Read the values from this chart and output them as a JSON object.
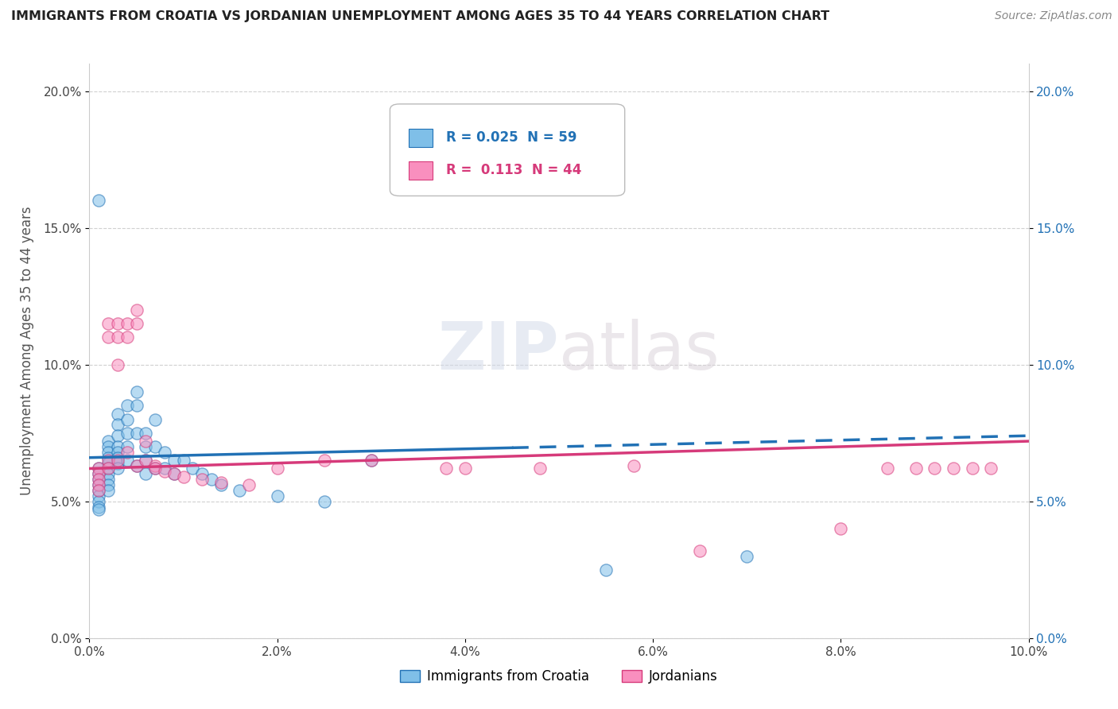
{
  "title": "IMMIGRANTS FROM CROATIA VS JORDANIAN UNEMPLOYMENT AMONG AGES 35 TO 44 YEARS CORRELATION CHART",
  "source": "Source: ZipAtlas.com",
  "ylabel": "Unemployment Among Ages 35 to 44 years",
  "xlim": [
    0.0,
    0.1
  ],
  "ylim": [
    0.0,
    0.21
  ],
  "legend_label1": "Immigrants from Croatia",
  "legend_label2": "Jordanians",
  "r1": 0.025,
  "n1": 59,
  "r2": 0.113,
  "n2": 44,
  "color1": "#7fbfe8",
  "color2": "#f98fbe",
  "color1_dark": "#2171b5",
  "color2_dark": "#d63a7a",
  "watermark_zip": "ZIP",
  "watermark_atlas": "atlas",
  "croatia_x": [
    0.001,
    0.001,
    0.001,
    0.001,
    0.001,
    0.001,
    0.001,
    0.001,
    0.001,
    0.001,
    0.002,
    0.002,
    0.002,
    0.002,
    0.002,
    0.002,
    0.002,
    0.002,
    0.002,
    0.002,
    0.003,
    0.003,
    0.003,
    0.003,
    0.003,
    0.003,
    0.003,
    0.003,
    0.004,
    0.004,
    0.004,
    0.004,
    0.004,
    0.005,
    0.005,
    0.005,
    0.005,
    0.006,
    0.006,
    0.006,
    0.006,
    0.007,
    0.007,
    0.007,
    0.008,
    0.008,
    0.009,
    0.009,
    0.01,
    0.011,
    0.012,
    0.013,
    0.014,
    0.016,
    0.02,
    0.025,
    0.03,
    0.055,
    0.07
  ],
  "croatia_y": [
    0.062,
    0.06,
    0.058,
    0.056,
    0.054,
    0.052,
    0.05,
    0.048,
    0.047,
    0.16,
    0.072,
    0.07,
    0.068,
    0.066,
    0.064,
    0.062,
    0.06,
    0.058,
    0.056,
    0.054,
    0.082,
    0.078,
    0.074,
    0.07,
    0.068,
    0.066,
    0.064,
    0.062,
    0.085,
    0.08,
    0.075,
    0.07,
    0.065,
    0.09,
    0.085,
    0.075,
    0.063,
    0.075,
    0.07,
    0.065,
    0.06,
    0.08,
    0.07,
    0.062,
    0.068,
    0.062,
    0.065,
    0.06,
    0.065,
    0.062,
    0.06,
    0.058,
    0.056,
    0.054,
    0.052,
    0.05,
    0.065,
    0.025,
    0.03
  ],
  "jordan_x": [
    0.001,
    0.001,
    0.001,
    0.001,
    0.001,
    0.002,
    0.002,
    0.002,
    0.002,
    0.003,
    0.003,
    0.003,
    0.003,
    0.004,
    0.004,
    0.004,
    0.005,
    0.005,
    0.005,
    0.006,
    0.006,
    0.007,
    0.007,
    0.008,
    0.009,
    0.01,
    0.012,
    0.014,
    0.017,
    0.02,
    0.025,
    0.03,
    0.038,
    0.04,
    0.048,
    0.058,
    0.065,
    0.08,
    0.085,
    0.088,
    0.09,
    0.092,
    0.094,
    0.096
  ],
  "jordan_y": [
    0.062,
    0.06,
    0.058,
    0.056,
    0.054,
    0.115,
    0.11,
    0.065,
    0.062,
    0.115,
    0.11,
    0.1,
    0.065,
    0.115,
    0.11,
    0.068,
    0.12,
    0.115,
    0.063,
    0.072,
    0.065,
    0.063,
    0.062,
    0.061,
    0.06,
    0.059,
    0.058,
    0.057,
    0.056,
    0.062,
    0.065,
    0.065,
    0.062,
    0.062,
    0.062,
    0.063,
    0.032,
    0.04,
    0.062,
    0.062,
    0.062,
    0.062,
    0.062,
    0.062
  ]
}
